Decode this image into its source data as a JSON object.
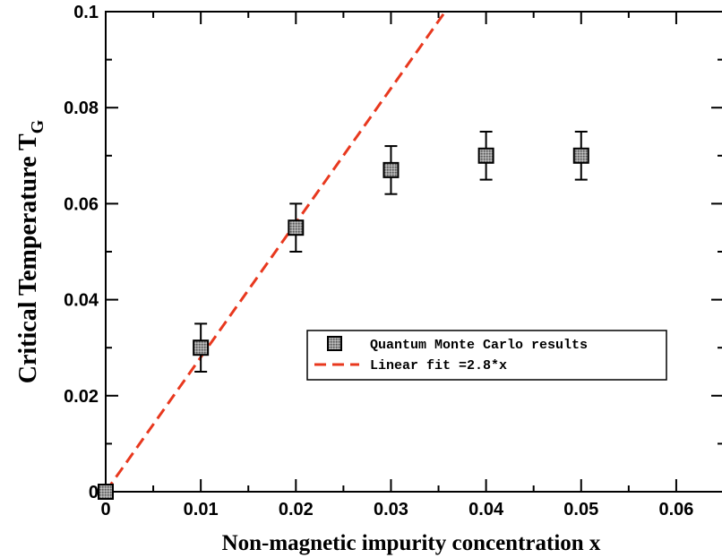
{
  "chart_data": {
    "type": "scatter",
    "xlabel": "Non-magnetic impurity concentration x",
    "ylabel_main": "Critical Temperature T",
    "ylabel_sub": "G",
    "xlim": [
      0,
      0.065
    ],
    "ylim": [
      0,
      0.1
    ],
    "x_ticks": [
      0,
      0.01,
      0.02,
      0.03,
      0.04,
      0.05,
      0.06
    ],
    "x_tick_labels": [
      "0",
      "0.01",
      "0.02",
      "0.03",
      "0.04",
      "0.05",
      "0.06"
    ],
    "y_ticks": [
      0,
      0.02,
      0.04,
      0.06,
      0.08,
      0.1
    ],
    "y_tick_labels": [
      "0",
      "0.02",
      "0.04",
      "0.06",
      "0.08",
      "0.1"
    ],
    "grid": false,
    "legend_position": "center-right",
    "series": [
      {
        "name": "Quantum Monte Carlo results",
        "kind": "scatter",
        "marker": "square",
        "color": "#808080",
        "x": [
          0,
          0.01,
          0.02,
          0.03,
          0.04,
          0.05
        ],
        "y": [
          0,
          0.03,
          0.055,
          0.067,
          0.07,
          0.07
        ],
        "yerr": [
          0,
          0.005,
          0.005,
          0.005,
          0.005,
          0.005
        ]
      },
      {
        "name": "Linear fit =2.8*x",
        "kind": "line",
        "style": "dashed",
        "color": "#e8381e",
        "slope": 2.8,
        "x": [
          0,
          0.0357
        ],
        "y": [
          0,
          0.1
        ]
      }
    ]
  }
}
